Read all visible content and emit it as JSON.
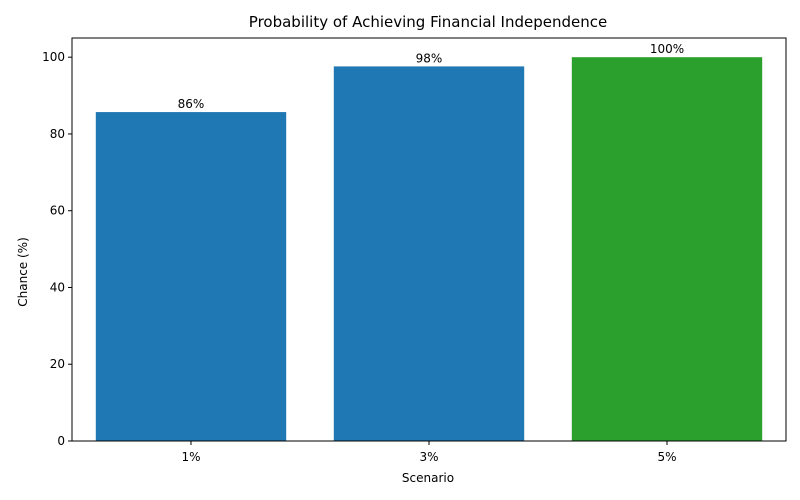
{
  "chart_data": {
    "type": "bar",
    "title": "Probability of Achieving Financial Independence",
    "xlabel": "Scenario",
    "ylabel": "Chance (%)",
    "categories": [
      "1%",
      "3%",
      "5%"
    ],
    "values": [
      85.7,
      97.6,
      100
    ],
    "data_labels": [
      "86%",
      "98%",
      "100%"
    ],
    "colors": [
      "#1f77b4",
      "#1f77b4",
      "#2ca02c"
    ],
    "ylim": [
      0,
      105
    ],
    "yticks": [
      0,
      20,
      40,
      60,
      80,
      100
    ],
    "grid": false,
    "legend": "none"
  }
}
